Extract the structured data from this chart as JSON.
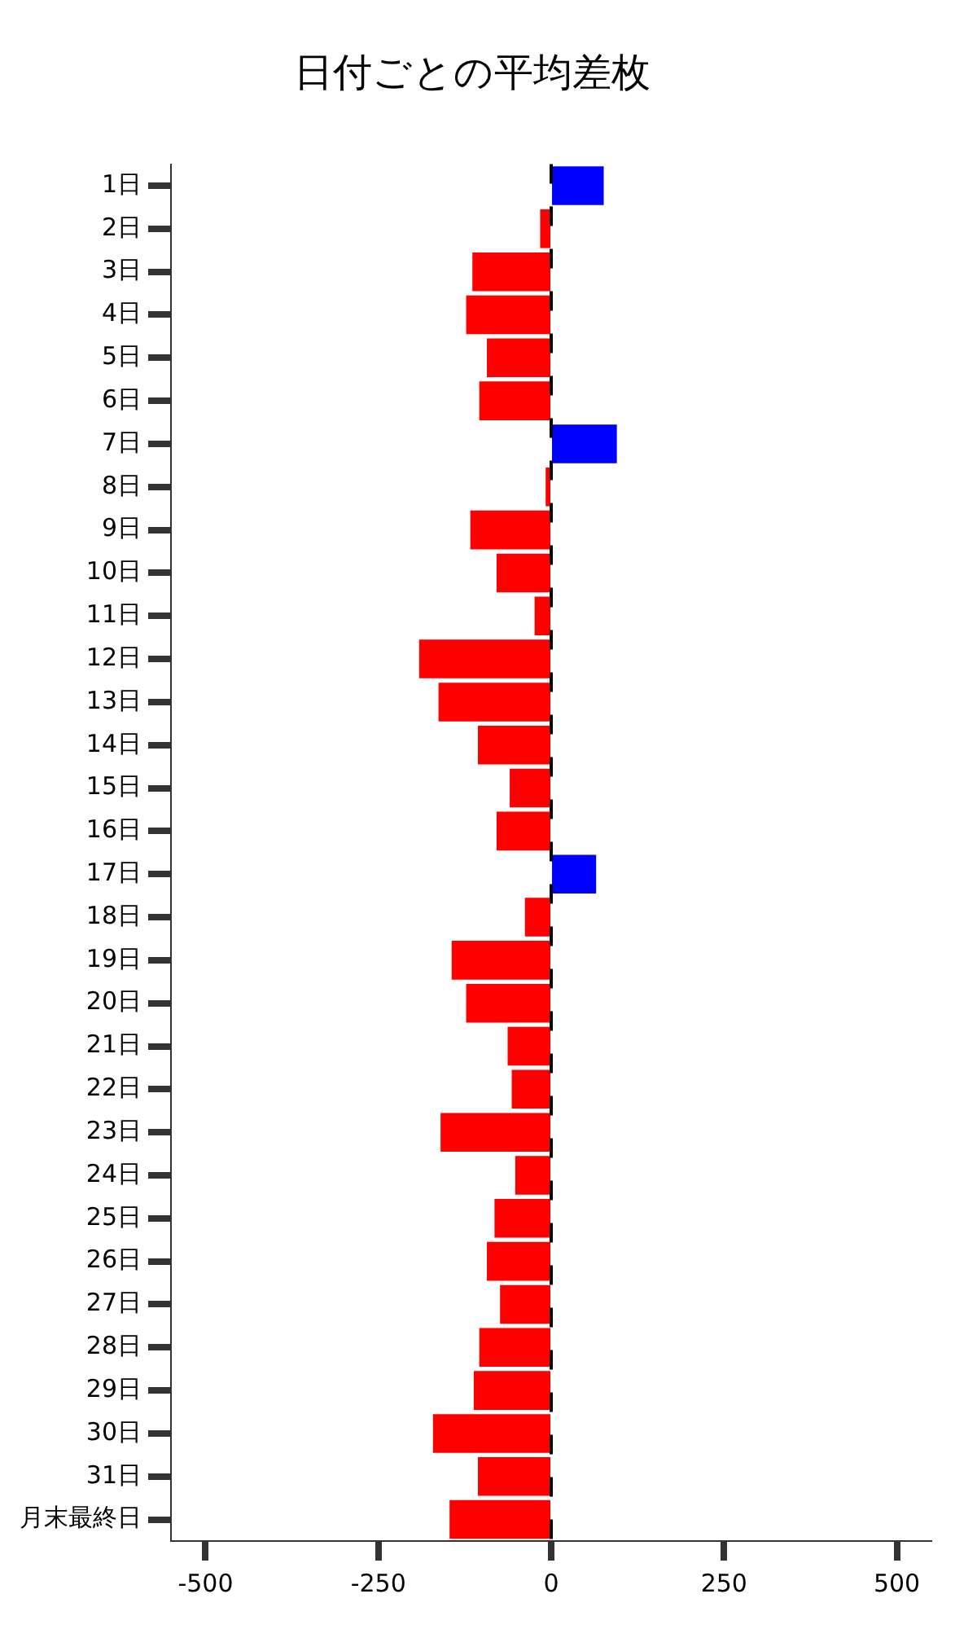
{
  "chart_data": {
    "type": "bar",
    "orientation": "horizontal",
    "title": "日付ごとの平均差枚",
    "categories": [
      "1日",
      "2日",
      "3日",
      "4日",
      "5日",
      "6日",
      "7日",
      "8日",
      "9日",
      "10日",
      "11日",
      "12日",
      "13日",
      "14日",
      "15日",
      "16日",
      "17日",
      "18日",
      "19日",
      "20日",
      "21日",
      "22日",
      "23日",
      "24日",
      "25日",
      "26日",
      "27日",
      "28日",
      "29日",
      "30日",
      "31日",
      "月末最終日"
    ],
    "values": [
      76,
      -16,
      -114,
      -123,
      -93,
      -104,
      95,
      -8,
      -117,
      -79,
      -24,
      -191,
      -163,
      -106,
      -60,
      -79,
      65,
      -38,
      -144,
      -123,
      -63,
      -57,
      -160,
      -52,
      -82,
      -93,
      -74,
      -104,
      -112,
      -171,
      -106,
      -147
    ],
    "colors": [
      "#0000ff",
      "#ff0000",
      "#ff0000",
      "#ff0000",
      "#ff0000",
      "#ff0000",
      "#0000ff",
      "#ff0000",
      "#ff0000",
      "#ff0000",
      "#ff0000",
      "#ff0000",
      "#ff0000",
      "#ff0000",
      "#ff0000",
      "#ff0000",
      "#0000ff",
      "#ff0000",
      "#ff0000",
      "#ff0000",
      "#ff0000",
      "#ff0000",
      "#ff0000",
      "#ff0000",
      "#ff0000",
      "#ff0000",
      "#ff0000",
      "#ff0000",
      "#ff0000",
      "#ff0000",
      "#ff0000",
      "#ff0000"
    ],
    "xlim": [
      -550,
      550
    ],
    "xticks": [
      -500,
      -250,
      0,
      250,
      500
    ],
    "ref_lines": [
      {
        "axis": "x",
        "value": 0,
        "color": "#000000",
        "line_style": "dashed"
      }
    ],
    "grid": false,
    "legend": false
  }
}
